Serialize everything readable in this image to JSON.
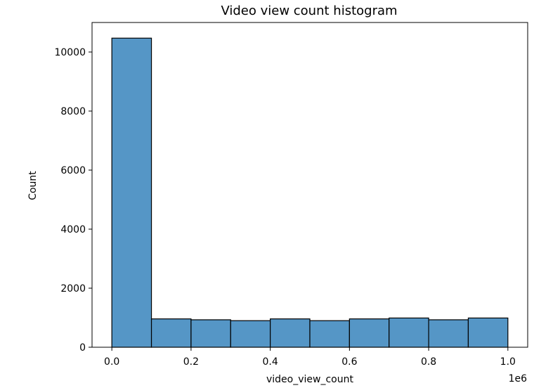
{
  "chart_data": {
    "type": "bar",
    "title": "Video view count histogram",
    "xlabel": "video_view_count",
    "ylabel": "Count",
    "x_offset_label": "1e6",
    "xlim": [
      -0.05,
      1.05
    ],
    "ylim": [
      0,
      11000
    ],
    "bins": [
      {
        "x0": 0.0,
        "x1": 0.1,
        "count": 10470
      },
      {
        "x0": 0.1,
        "x1": 0.2,
        "count": 960
      },
      {
        "x0": 0.2,
        "x1": 0.3,
        "count": 930
      },
      {
        "x0": 0.3,
        "x1": 0.4,
        "count": 900
      },
      {
        "x0": 0.4,
        "x1": 0.5,
        "count": 960
      },
      {
        "x0": 0.5,
        "x1": 0.6,
        "count": 900
      },
      {
        "x0": 0.6,
        "x1": 0.7,
        "count": 960
      },
      {
        "x0": 0.7,
        "x1": 0.8,
        "count": 990
      },
      {
        "x0": 0.8,
        "x1": 0.9,
        "count": 930
      },
      {
        "x0": 0.9,
        "x1": 1.0,
        "count": 990
      }
    ],
    "x_ticks": [
      {
        "value": 0.0,
        "label": "0.0"
      },
      {
        "value": 0.2,
        "label": "0.2"
      },
      {
        "value": 0.4,
        "label": "0.4"
      },
      {
        "value": 0.6,
        "label": "0.6"
      },
      {
        "value": 0.8,
        "label": "0.8"
      },
      {
        "value": 1.0,
        "label": "1.0"
      }
    ],
    "y_ticks": [
      {
        "value": 0,
        "label": "0"
      },
      {
        "value": 2000,
        "label": "2000"
      },
      {
        "value": 4000,
        "label": "4000"
      },
      {
        "value": 6000,
        "label": "6000"
      },
      {
        "value": 8000,
        "label": "8000"
      },
      {
        "value": 10000,
        "label": "10000"
      }
    ],
    "grid": false,
    "colors": {
      "bar_fill": "#5596c6",
      "bar_edge": "#000000"
    }
  }
}
